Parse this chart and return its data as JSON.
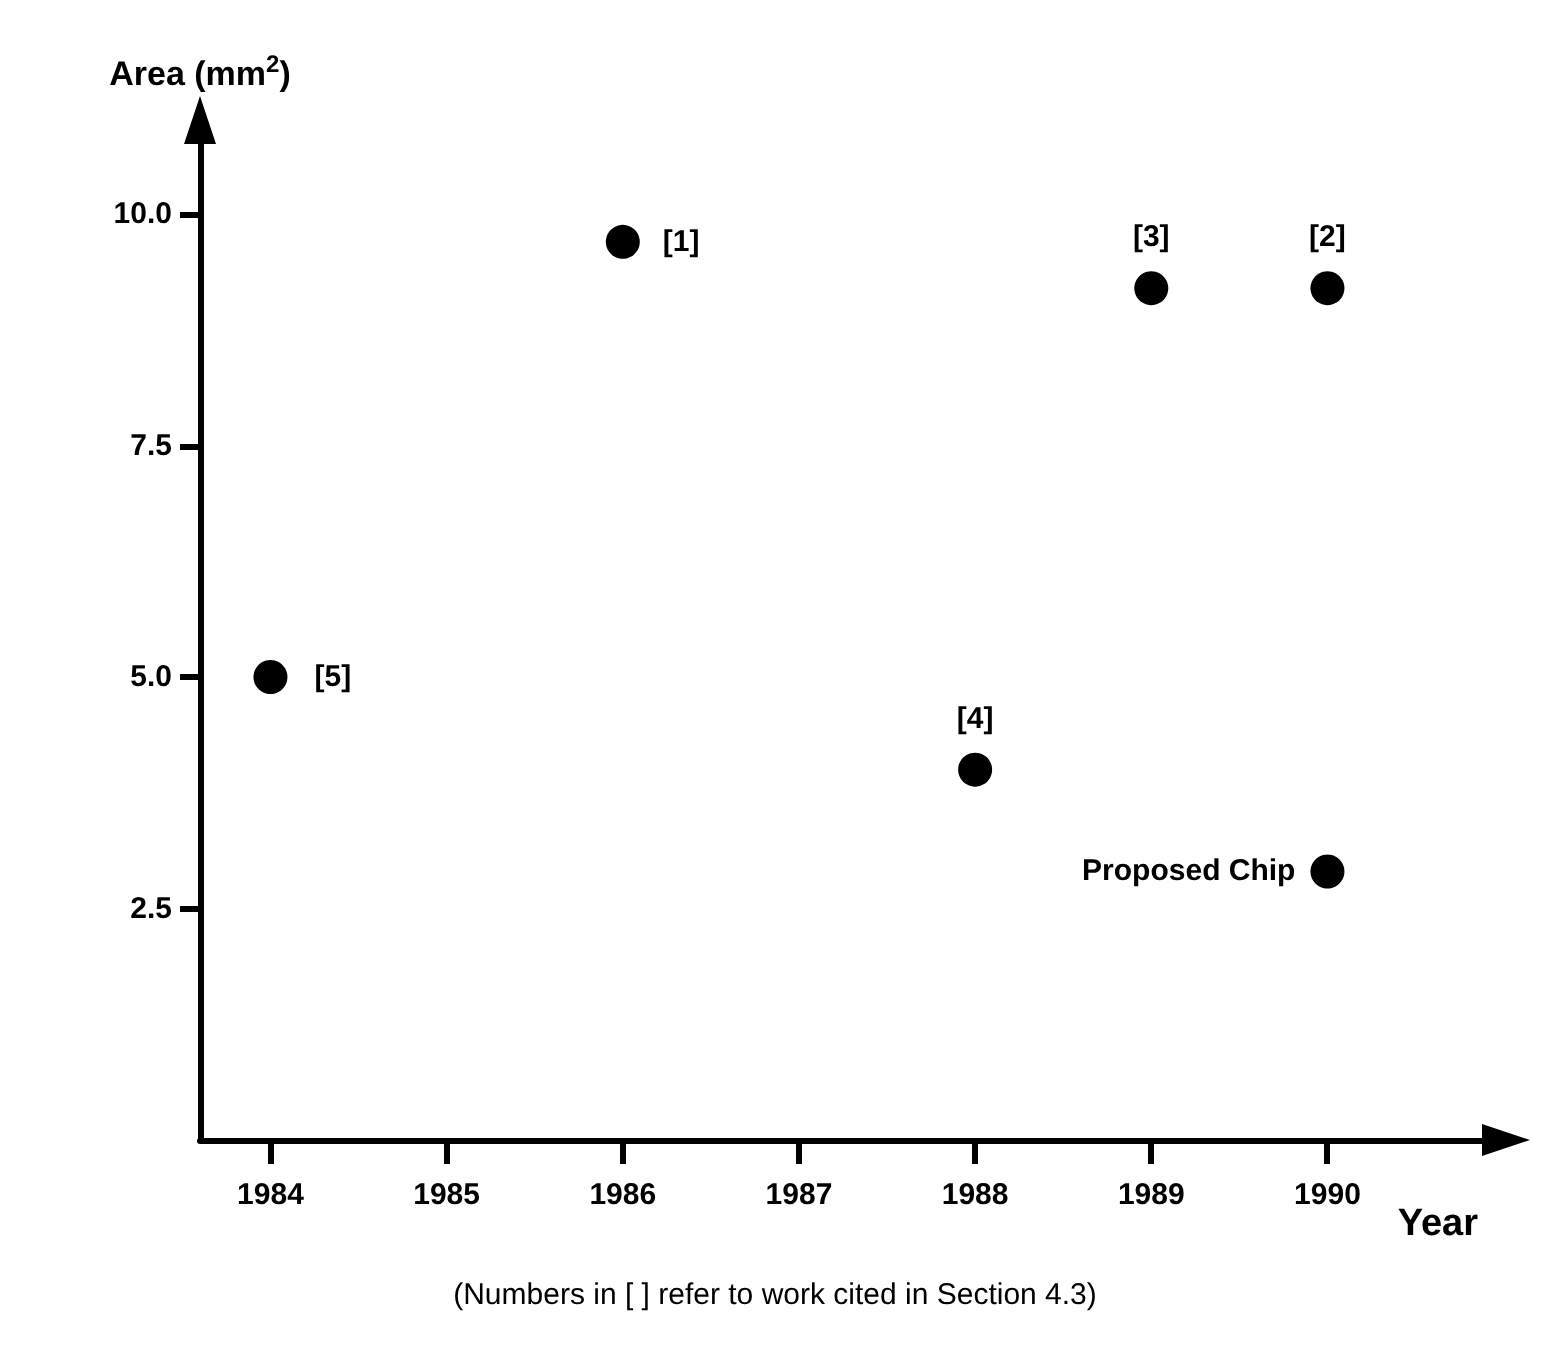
{
  "chart_data": {
    "type": "scatter",
    "xlabel": "Year",
    "ylabel": "Area (mm$^{2}$)",
    "x": [
      1984,
      1986,
      1988,
      1989,
      1990,
      1990
    ],
    "values": [
      5.0,
      9.7,
      4.0,
      9.2,
      9.2,
      2.9
    ],
    "color": "#000000",
    "marker": "circle",
    "xlim": [
      1983.6,
      1990.9
    ],
    "xticks": [
      1984,
      1985,
      1986,
      1987,
      1988,
      1989,
      1990
    ],
    "ylim": [
      0,
      10.8
    ],
    "yticks": [
      {
        "value": 2.5,
        "label": "2.5"
      },
      {
        "value": 5,
        "label": "5.0"
      },
      {
        "value": 7.5,
        "label": "7.5"
      },
      {
        "value": 10,
        "label": "10.0"
      }
    ],
    "grid": false,
    "annotations": [
      {
        "text": "[5]",
        "x": 1984,
        "y": 5.0
      },
      {
        "text": "[1]",
        "x": 1986,
        "y": 9.7
      },
      {
        "text": "[4]",
        "x": 1988,
        "y": 4.0
      },
      {
        "text": "[3]",
        "x": 1989,
        "y": 9.2
      },
      {
        "text": "[2]",
        "x": 1990,
        "y": 9.2
      },
      {
        "text": "Proposed Chip",
        "x": 1990,
        "y": 2.9
      },
      "(Numbers in [ ] refer to work cited in Section 4.3)"
    ]
  }
}
